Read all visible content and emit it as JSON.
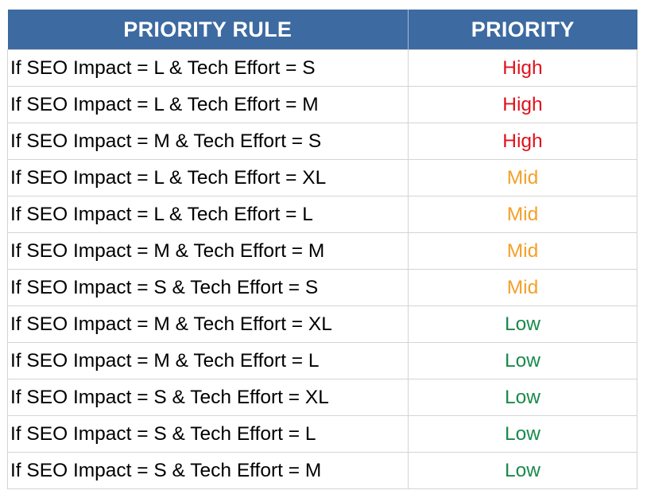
{
  "table": {
    "headers": {
      "rule": "PRIORITY RULE",
      "priority": "PRIORITY"
    },
    "colors": {
      "header_bg": "#3d6aa1",
      "High": "#e0111b",
      "Mid": "#f3a028",
      "Low": "#1a8a4c"
    },
    "rows": [
      {
        "rule": "If SEO Impact = L & Tech Effort = S",
        "priority": "High"
      },
      {
        "rule": "If SEO Impact = L & Tech Effort = M",
        "priority": "High"
      },
      {
        "rule": "If SEO Impact = M & Tech Effort = S",
        "priority": "High"
      },
      {
        "rule": "If SEO Impact = L & Tech Effort = XL",
        "priority": "Mid"
      },
      {
        "rule": "If SEO Impact = L & Tech Effort = L",
        "priority": "Mid"
      },
      {
        "rule": "If SEO Impact = M & Tech Effort = M",
        "priority": "Mid"
      },
      {
        "rule": "If SEO Impact = S & Tech Effort = S",
        "priority": "Mid"
      },
      {
        "rule": "If SEO Impact = M & Tech Effort = XL",
        "priority": "Low"
      },
      {
        "rule": "If SEO Impact = M & Tech Effort = L",
        "priority": "Low"
      },
      {
        "rule": "If SEO Impact = S & Tech Effort = XL",
        "priority": "Low"
      },
      {
        "rule": "If SEO Impact = S & Tech Effort = L",
        "priority": "Low"
      },
      {
        "rule": "If SEO Impact = S & Tech Effort = M",
        "priority": "Low"
      }
    ]
  }
}
